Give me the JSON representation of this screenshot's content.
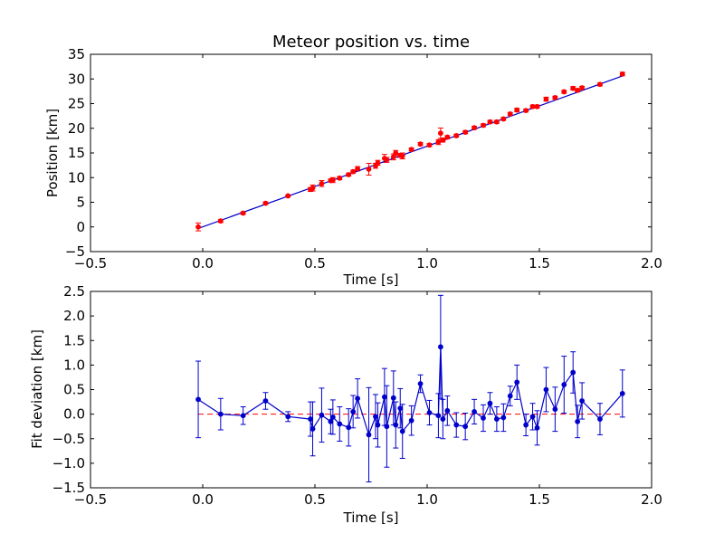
{
  "chart_data": [
    {
      "type": "scatter",
      "title": "Meteor position vs. time",
      "xlabel": "Time [s]",
      "ylabel": "Position [km]",
      "xlim": [
        -0.5,
        2.0
      ],
      "ylim": [
        -5,
        35
      ],
      "xticks": [
        -0.5,
        0.0,
        0.5,
        1.0,
        1.5,
        2.0
      ],
      "yticks": [
        -5,
        0,
        5,
        10,
        15,
        20,
        25,
        30,
        35
      ],
      "xtick_labels": [
        "−0.5",
        "0.0",
        "0.5",
        "1.0",
        "1.5",
        "2.0"
      ],
      "ytick_labels": [
        "−5",
        "0",
        "5",
        "10",
        "15",
        "20",
        "25",
        "30",
        "35"
      ],
      "grid": false,
      "legend": "none",
      "colors": {
        "points": "#ff0000",
        "fit": "#0000cc"
      },
      "fit_line": {
        "x": [
          -0.02,
          1.87
        ],
        "y": [
          -0.3,
          30.6
        ]
      },
      "series": [
        {
          "x": [
            -0.02,
            0.08,
            0.18,
            0.28,
            0.38,
            0.48,
            0.49,
            0.53,
            0.57,
            0.58,
            0.61,
            0.65,
            0.67,
            0.69,
            0.74,
            0.77,
            0.78,
            0.81,
            0.82,
            0.85,
            0.86,
            0.88,
            0.89,
            0.93,
            0.97,
            1.01,
            1.05,
            1.06,
            1.07,
            1.09,
            1.13,
            1.17,
            1.21,
            1.25,
            1.28,
            1.31,
            1.34,
            1.37,
            1.4,
            1.44,
            1.47,
            1.49,
            1.53,
            1.57,
            1.61,
            1.65,
            1.67,
            1.69,
            1.77,
            1.87
          ],
          "y": [
            0.0,
            1.2,
            2.8,
            4.8,
            6.3,
            7.6,
            7.9,
            8.8,
            9.4,
            9.5,
            9.9,
            10.6,
            11.2,
            11.8,
            11.7,
            12.4,
            13.0,
            13.9,
            13.6,
            14.2,
            15.0,
            14.5,
            14.4,
            15.7,
            16.8,
            16.6,
            17.2,
            19.0,
            17.6,
            18.2,
            18.5,
            19.2,
            20.1,
            20.6,
            21.3,
            21.3,
            21.9,
            22.9,
            23.7,
            23.6,
            24.4,
            24.4,
            25.9,
            26.2,
            27.4,
            28.1,
            27.7,
            28.2,
            28.9,
            31.0
          ],
          "yerr": [
            0.8,
            0.3,
            0.25,
            0.25,
            0.15,
            0.4,
            0.6,
            0.6,
            0.3,
            0.5,
            0.3,
            0.3,
            0.3,
            0.45,
            1.2,
            0.5,
            0.5,
            0.8,
            0.5,
            0.6,
            0.5,
            0.4,
            0.6,
            0.3,
            0.3,
            0.3,
            0.5,
            1.05,
            0.4,
            0.3,
            0.3,
            0.3,
            0.3,
            0.3,
            0.3,
            0.3,
            0.3,
            0.3,
            0.35,
            0.3,
            0.3,
            0.3,
            0.4,
            0.3,
            0.3,
            0.35,
            0.3,
            0.3,
            0.3,
            0.35
          ]
        }
      ]
    },
    {
      "type": "line",
      "title": "",
      "xlabel": "Time [s]",
      "ylabel": "Fit deviation [km]",
      "xlim": [
        -0.5,
        2.0
      ],
      "ylim": [
        -1.5,
        2.5
      ],
      "xticks": [
        -0.5,
        0.0,
        0.5,
        1.0,
        1.5,
        2.0
      ],
      "yticks": [
        -1.5,
        -1.0,
        -0.5,
        0.0,
        0.5,
        1.0,
        1.5,
        2.0,
        2.5
      ],
      "xtick_labels": [
        "−0.5",
        "0.0",
        "0.5",
        "1.0",
        "1.5",
        "2.0"
      ],
      "ytick_labels": [
        "−1.5",
        "−1.0",
        "−0.5",
        "0.0",
        "0.5",
        "1.0",
        "1.5",
        "2.0",
        "2.5"
      ],
      "grid": false,
      "legend": "none",
      "colors": {
        "series": "#0000cc",
        "zero_line": "#ff0000"
      },
      "zero_line": 0.0,
      "series": [
        {
          "x": [
            -0.02,
            0.08,
            0.18,
            0.28,
            0.38,
            0.48,
            0.49,
            0.53,
            0.57,
            0.58,
            0.61,
            0.65,
            0.67,
            0.69,
            0.74,
            0.77,
            0.78,
            0.81,
            0.82,
            0.85,
            0.86,
            0.88,
            0.89,
            0.93,
            0.97,
            1.01,
            1.05,
            1.06,
            1.07,
            1.09,
            1.13,
            1.17,
            1.21,
            1.25,
            1.28,
            1.31,
            1.34,
            1.37,
            1.4,
            1.44,
            1.47,
            1.49,
            1.53,
            1.57,
            1.61,
            1.65,
            1.67,
            1.69,
            1.77,
            1.87
          ],
          "y": [
            0.3,
            0.0,
            -0.03,
            0.27,
            -0.05,
            -0.1,
            -0.3,
            -0.02,
            -0.15,
            -0.06,
            -0.2,
            -0.27,
            0.05,
            0.32,
            -0.42,
            -0.05,
            -0.22,
            0.35,
            -0.25,
            0.33,
            -0.22,
            0.12,
            -0.35,
            -0.13,
            0.62,
            0.03,
            -0.03,
            1.37,
            -0.1,
            0.07,
            -0.22,
            -0.25,
            0.05,
            -0.08,
            0.22,
            -0.1,
            -0.07,
            0.37,
            0.65,
            -0.22,
            -0.05,
            -0.28,
            0.5,
            0.1,
            0.6,
            0.85,
            -0.15,
            0.27,
            -0.1,
            0.42
          ],
          "yerr": [
            0.78,
            0.32,
            0.18,
            0.17,
            0.1,
            0.35,
            0.55,
            0.55,
            0.25,
            0.35,
            0.35,
            0.38,
            0.33,
            0.4,
            0.96,
            0.45,
            0.45,
            0.58,
            0.83,
            0.55,
            0.47,
            0.4,
            0.55,
            0.3,
            0.18,
            0.25,
            0.45,
            1.05,
            0.4,
            0.3,
            0.25,
            0.27,
            0.25,
            0.27,
            0.22,
            0.25,
            0.28,
            0.2,
            0.35,
            0.22,
            0.27,
            0.35,
            0.45,
            0.45,
            0.58,
            0.42,
            0.33,
            0.37,
            0.32,
            0.48
          ]
        }
      ]
    }
  ]
}
